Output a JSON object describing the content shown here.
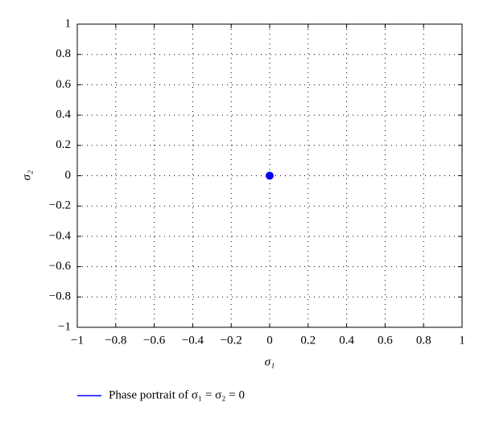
{
  "chart_data": {
    "type": "scatter",
    "x_label": "σ₁",
    "y_label": "σ₂",
    "series": [
      {
        "name": "Phase portrait of σ₁ = σ₂ = 0",
        "color": "#0000ff",
        "x": [
          0
        ],
        "values": [
          0
        ]
      }
    ],
    "xlim": [
      -1,
      1
    ],
    "ylim": [
      -1,
      1
    ],
    "xticks": [
      {
        "value": -1,
        "label": "−1"
      },
      {
        "value": -0.8,
        "label": "−0.8"
      },
      {
        "value": -0.6,
        "label": "−0.6"
      },
      {
        "value": -0.4,
        "label": "−0.4"
      },
      {
        "value": -0.2,
        "label": "−0.2"
      },
      0,
      0.2,
      0.4,
      0.6,
      0.8,
      1
    ],
    "yticks": [
      {
        "value": -1,
        "label": "−1"
      },
      {
        "value": -0.8,
        "label": "−0.8"
      },
      {
        "value": -0.6,
        "label": "−0.6"
      },
      {
        "value": -0.4,
        "label": "−0.4"
      },
      {
        "value": -0.2,
        "label": "−0.2"
      },
      0,
      0.2,
      0.4,
      0.6,
      0.8,
      1
    ],
    "grid": true,
    "legend": "bottom"
  }
}
